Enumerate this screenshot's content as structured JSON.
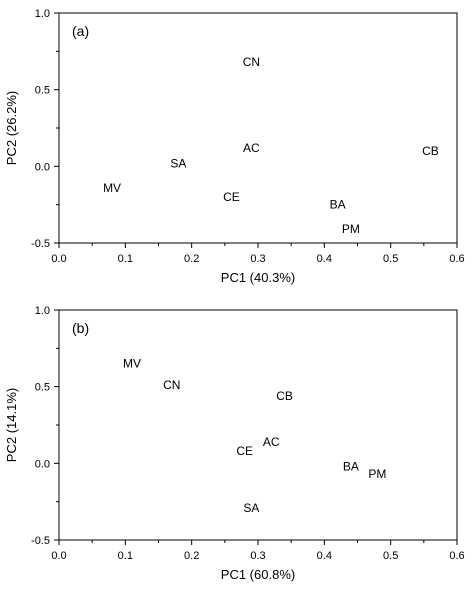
{
  "chart_data": [
    {
      "type": "scatter",
      "panel_label": "(a)",
      "xlabel": "PC1 (40.3%)",
      "ylabel": "PC2 (26.2%)",
      "xlim": [
        0.0,
        0.6
      ],
      "ylim": [
        -0.5,
        1.0
      ],
      "x_ticks": [
        0.0,
        0.1,
        0.2,
        0.3,
        0.4,
        0.5,
        0.6
      ],
      "x_tick_labels": [
        "0.0",
        "0.1",
        "0.2",
        "0.3",
        "0.4",
        "0.5",
        "0.6"
      ],
      "y_ticks": [
        -0.5,
        0.0,
        0.5,
        1.0
      ],
      "y_tick_labels": [
        "-0.5",
        "0.0",
        "0.5",
        "1.0"
      ],
      "grid": false,
      "points": [
        {
          "label": "CN",
          "x": 0.29,
          "y": 0.68
        },
        {
          "label": "AC",
          "x": 0.29,
          "y": 0.12
        },
        {
          "label": "SA",
          "x": 0.18,
          "y": 0.02
        },
        {
          "label": "MV",
          "x": 0.08,
          "y": -0.14
        },
        {
          "label": "CE",
          "x": 0.26,
          "y": -0.2
        },
        {
          "label": "BA",
          "x": 0.42,
          "y": -0.25
        },
        {
          "label": "PM",
          "x": 0.44,
          "y": -0.41
        },
        {
          "label": "CB",
          "x": 0.56,
          "y": 0.1
        }
      ]
    },
    {
      "type": "scatter",
      "panel_label": "(b)",
      "xlabel": "PC1 (60.8%)",
      "ylabel": "PC2 (14.1%)",
      "xlim": [
        0.0,
        0.6
      ],
      "ylim": [
        -0.5,
        1.0
      ],
      "x_ticks": [
        0.0,
        0.1,
        0.2,
        0.3,
        0.4,
        0.5,
        0.6
      ],
      "x_tick_labels": [
        "0.0",
        "0.1",
        "0.2",
        "0.3",
        "0.4",
        "0.5",
        "0.6"
      ],
      "y_ticks": [
        -0.5,
        0.0,
        0.5,
        1.0
      ],
      "y_tick_labels": [
        "-0.5",
        "0.0",
        "0.5",
        "1.0"
      ],
      "grid": false,
      "points": [
        {
          "label": "MV",
          "x": 0.11,
          "y": 0.65
        },
        {
          "label": "CN",
          "x": 0.17,
          "y": 0.51
        },
        {
          "label": "CB",
          "x": 0.34,
          "y": 0.44
        },
        {
          "label": "AC",
          "x": 0.32,
          "y": 0.14
        },
        {
          "label": "CE",
          "x": 0.28,
          "y": 0.08
        },
        {
          "label": "BA",
          "x": 0.44,
          "y": -0.02
        },
        {
          "label": "PM",
          "x": 0.48,
          "y": -0.07
        },
        {
          "label": "SA",
          "x": 0.29,
          "y": -0.29
        }
      ]
    }
  ]
}
